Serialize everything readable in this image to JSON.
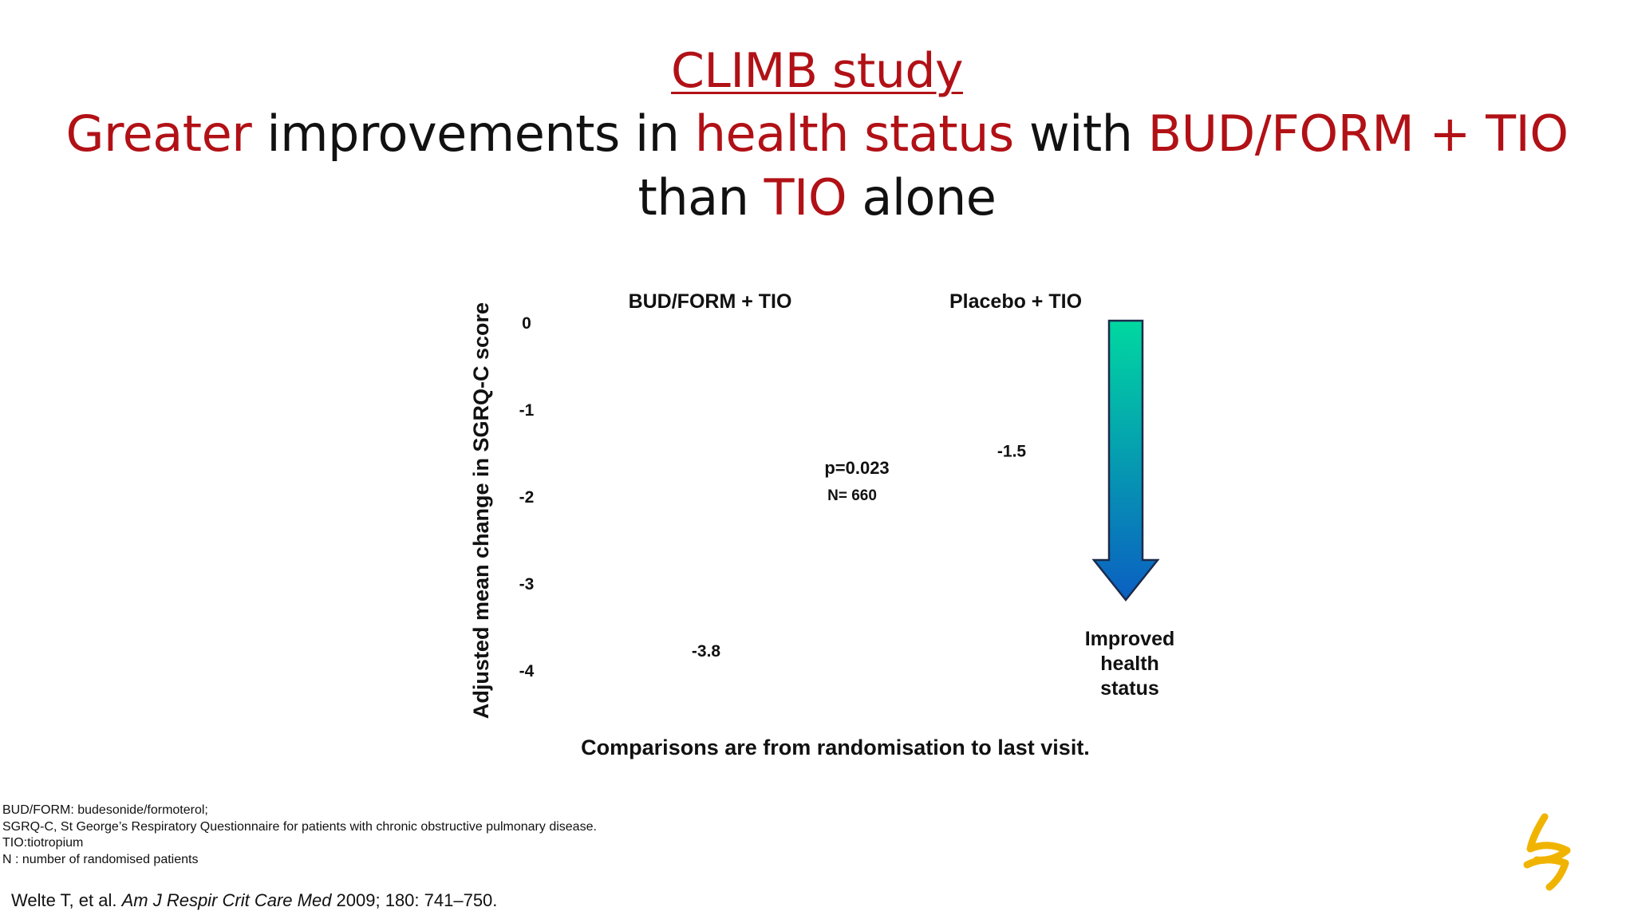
{
  "slide": {
    "title_study": "CLIMB study",
    "title_line1": [
      {
        "text": "Greater",
        "red": true
      },
      {
        "text": " improvements in ",
        "red": false
      },
      {
        "text": "health status",
        "red": true
      },
      {
        "text": " with ",
        "red": false
      },
      {
        "text": "BUD/FORM + TIO",
        "red": true
      }
    ],
    "title_line2": [
      {
        "text": "than ",
        "red": false
      },
      {
        "text": "TIO",
        "red": true
      },
      {
        "text": " alone",
        "red": false
      }
    ],
    "footnotes": [
      "BUD/FORM: budesonide/formoterol;",
      "SGRQ-C, St George’s Respiratory Questionnaire for patients with chronic obstructive pulmonary disease.",
      "TIO:tiotropium",
      "N : number of randomised patients"
    ],
    "citation_prefix": "Welte T, et al. ",
    "citation_journal": "Am J Respir Crit Care Med",
    "citation_suffix": " 2009; 180: 741–750.",
    "colors": {
      "accent_red": "#b11116",
      "arrow_top": "#00d8a0",
      "arrow_bottom": "#0b5fc2",
      "logo": "#f0b400"
    },
    "icons": [
      "arrow-down-gradient-icon",
      "astrazeneca-logo-icon"
    ]
  },
  "chart_data": {
    "type": "bar",
    "categories": [
      "BUD/FORM + TIO",
      "Placebo + TIO"
    ],
    "values": [
      -3.8,
      -1.5
    ],
    "value_labels": [
      "-3.8",
      "-1.5"
    ],
    "ylabel": "Adjusted mean change in SGRQ-C score",
    "ylim": [
      -4,
      0
    ],
    "yticks": [
      "0",
      "-1",
      "-2",
      "-3",
      "-4"
    ],
    "annotation_p": "p=0.023",
    "annotation_n": "N= 660",
    "arrow_label_lines": [
      "Improved",
      "health",
      "status"
    ],
    "footer": "Comparisons are from randomisation to last visit.",
    "grid": false,
    "legend": "none"
  }
}
